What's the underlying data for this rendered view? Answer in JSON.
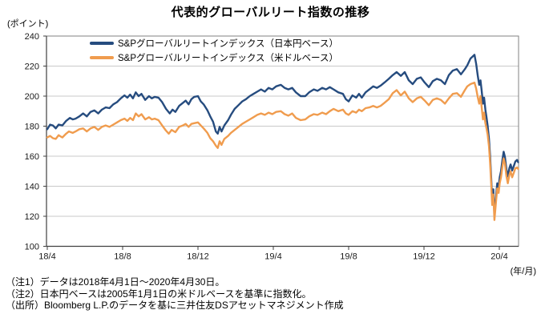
{
  "title": "代表的グローバルリート指数の推移",
  "notes": [
    "（注1）データは2018年4月1日～2020年4月30日。",
    "（注2）日本円ベースは2005年1月1日の米ドルベースを基準に指数化。",
    "（出所）Bloomberg L.P.のデータを基に三井住友DSアセットマネジメント作成"
  ],
  "colors": {
    "jpy_line": "#264C7F",
    "usd_line": "#F09C4E",
    "gridline": "#C9C9C9",
    "axis": "#404040",
    "border": "#808080"
  },
  "chart_data": {
    "type": "line",
    "title": "代表的グローバルリート指数の推移",
    "y_axis_unit": "(ポイント)",
    "x_axis_unit": "(年/月)",
    "xlabel": "年/月",
    "ylabel": "ポイント",
    "xlim": [
      0,
      25
    ],
    "ylim": [
      100,
      240
    ],
    "y_ticks": [
      100,
      120,
      140,
      160,
      180,
      200,
      220,
      240
    ],
    "x_tick_labels": [
      "18/4",
      "18/8",
      "18/12",
      "19/4",
      "19/8",
      "19/12",
      "20/4"
    ],
    "x_tick_positions": [
      0,
      4,
      8,
      12,
      16,
      20,
      24
    ],
    "x_unit_desc": "months since 2018/4",
    "grid": "horizontal",
    "legend_position": "top-left-inside",
    "series": [
      {
        "name": "S&Pグローバルリートインデックス（日本円ベース）",
        "color": "#264C7F",
        "points": [
          [
            0,
            178
          ],
          [
            0.15,
            181
          ],
          [
            0.3,
            180.5
          ],
          [
            0.45,
            178.5
          ],
          [
            0.6,
            181
          ],
          [
            0.8,
            180.5
          ],
          [
            1.0,
            183.5
          ],
          [
            1.2,
            185.5
          ],
          [
            1.35,
            184.5
          ],
          [
            1.5,
            185
          ],
          [
            1.7,
            186.5
          ],
          [
            1.9,
            188.5
          ],
          [
            2.1,
            186.5
          ],
          [
            2.3,
            189.5
          ],
          [
            2.5,
            190.5
          ],
          [
            2.7,
            188.5
          ],
          [
            2.9,
            191
          ],
          [
            3.1,
            192.5
          ],
          [
            3.3,
            192
          ],
          [
            3.5,
            194.5
          ],
          [
            3.7,
            196
          ],
          [
            3.9,
            198.5
          ],
          [
            4.1,
            200.5
          ],
          [
            4.25,
            199
          ],
          [
            4.4,
            201
          ],
          [
            4.55,
            198.5
          ],
          [
            4.7,
            202.5
          ],
          [
            4.85,
            200
          ],
          [
            5.0,
            201.5
          ],
          [
            5.2,
            197.5
          ],
          [
            5.4,
            200
          ],
          [
            5.55,
            198.5
          ],
          [
            5.7,
            199.5
          ],
          [
            5.9,
            199
          ],
          [
            6.1,
            196
          ],
          [
            6.3,
            191.5
          ],
          [
            6.5,
            188.5
          ],
          [
            6.65,
            191
          ],
          [
            6.8,
            189.5
          ],
          [
            7.0,
            193.5
          ],
          [
            7.2,
            195.5
          ],
          [
            7.35,
            197
          ],
          [
            7.5,
            194.5
          ],
          [
            7.65,
            198
          ],
          [
            7.8,
            199.5
          ],
          [
            8.0,
            200
          ],
          [
            8.15,
            196.5
          ],
          [
            8.3,
            194.5
          ],
          [
            8.5,
            190.5
          ],
          [
            8.65,
            186.5
          ],
          [
            8.8,
            183
          ],
          [
            8.95,
            176.5
          ],
          [
            9.05,
            175
          ],
          [
            9.15,
            179.5
          ],
          [
            9.25,
            176.5
          ],
          [
            9.4,
            180.5
          ],
          [
            9.6,
            184
          ],
          [
            9.75,
            187.5
          ],
          [
            9.95,
            191.5
          ],
          [
            10.15,
            194
          ],
          [
            10.35,
            196.5
          ],
          [
            10.55,
            198
          ],
          [
            10.75,
            200
          ],
          [
            10.95,
            201.5
          ],
          [
            11.15,
            203
          ],
          [
            11.35,
            204.5
          ],
          [
            11.55,
            203
          ],
          [
            11.75,
            205.5
          ],
          [
            11.95,
            204.5
          ],
          [
            12.15,
            206.5
          ],
          [
            12.4,
            207.5
          ],
          [
            12.6,
            205.5
          ],
          [
            12.8,
            204.5
          ],
          [
            13.0,
            205.5
          ],
          [
            13.2,
            202.5
          ],
          [
            13.45,
            200
          ],
          [
            13.7,
            200
          ],
          [
            13.9,
            202.5
          ],
          [
            14.15,
            204.5
          ],
          [
            14.35,
            203.5
          ],
          [
            14.6,
            205.5
          ],
          [
            14.8,
            204.5
          ],
          [
            15.0,
            206
          ],
          [
            15.2,
            204.5
          ],
          [
            15.45,
            202.5
          ],
          [
            15.7,
            201.5
          ],
          [
            15.85,
            198
          ],
          [
            16.0,
            196.5
          ],
          [
            16.2,
            200.5
          ],
          [
            16.4,
            199
          ],
          [
            16.55,
            201.5
          ],
          [
            16.7,
            199
          ],
          [
            16.9,
            202.5
          ],
          [
            17.1,
            204.5
          ],
          [
            17.3,
            206.5
          ],
          [
            17.5,
            205.5
          ],
          [
            17.7,
            207
          ],
          [
            17.9,
            209
          ],
          [
            18.13,
            211.5
          ],
          [
            18.34,
            214
          ],
          [
            18.55,
            216
          ],
          [
            18.77,
            213.5
          ],
          [
            18.98,
            216
          ],
          [
            19.19,
            210.5
          ],
          [
            19.4,
            208
          ],
          [
            19.62,
            211.5
          ],
          [
            19.83,
            212.5
          ],
          [
            20.04,
            209
          ],
          [
            20.26,
            206
          ],
          [
            20.47,
            210
          ],
          [
            20.68,
            211.5
          ],
          [
            20.9,
            210.5
          ],
          [
            21.11,
            208
          ],
          [
            21.32,
            214
          ],
          [
            21.53,
            217
          ],
          [
            21.75,
            218
          ],
          [
            21.96,
            214.5
          ],
          [
            22.17,
            218
          ],
          [
            22.3,
            220.5
          ],
          [
            22.47,
            225
          ],
          [
            22.68,
            227.5
          ],
          [
            22.77,
            221.5
          ],
          [
            22.85,
            214
          ],
          [
            22.93,
            207.5
          ],
          [
            23.0,
            210.5
          ],
          [
            23.06,
            204
          ],
          [
            23.13,
            195
          ],
          [
            23.19,
            199
          ],
          [
            23.26,
            191
          ],
          [
            23.32,
            186
          ],
          [
            23.38,
            180.5
          ],
          [
            23.45,
            171.5
          ],
          [
            23.51,
            160
          ],
          [
            23.57,
            145
          ],
          [
            23.62,
            131
          ],
          [
            23.68,
            138
          ],
          [
            23.74,
            121
          ],
          [
            23.83,
            134
          ],
          [
            23.89,
            142
          ],
          [
            23.96,
            139.5
          ],
          [
            24.02,
            146
          ],
          [
            24.09,
            150
          ],
          [
            24.17,
            158
          ],
          [
            24.23,
            163
          ],
          [
            24.3,
            159.5
          ],
          [
            24.38,
            151
          ],
          [
            24.45,
            146.5
          ],
          [
            24.53,
            152
          ],
          [
            24.6,
            154.5
          ],
          [
            24.68,
            150.5
          ],
          [
            24.77,
            153.5
          ],
          [
            24.85,
            156.5
          ],
          [
            24.94,
            157.5
          ],
          [
            25.0,
            156
          ]
        ]
      },
      {
        "name": "S&Pグローバルリートインデックス（米ドルベース）",
        "color": "#F09C4E",
        "points": [
          [
            0,
            172.5
          ],
          [
            0.15,
            173.5
          ],
          [
            0.3,
            172
          ],
          [
            0.45,
            171.5
          ],
          [
            0.6,
            174
          ],
          [
            0.8,
            172.5
          ],
          [
            1.0,
            175
          ],
          [
            1.15,
            176.5
          ],
          [
            1.35,
            175.5
          ],
          [
            1.5,
            176.5
          ],
          [
            1.7,
            178
          ],
          [
            1.9,
            178.5
          ],
          [
            2.1,
            176.5
          ],
          [
            2.3,
            178.5
          ],
          [
            2.5,
            179.5
          ],
          [
            2.7,
            177.5
          ],
          [
            2.9,
            179.5
          ],
          [
            3.1,
            180.5
          ],
          [
            3.3,
            179.5
          ],
          [
            3.5,
            181
          ],
          [
            3.7,
            182.5
          ],
          [
            3.9,
            184
          ],
          [
            4.1,
            185
          ],
          [
            4.25,
            183.5
          ],
          [
            4.4,
            185.5
          ],
          [
            4.55,
            184
          ],
          [
            4.7,
            188.5
          ],
          [
            4.85,
            186.5
          ],
          [
            5.0,
            188
          ],
          [
            5.2,
            184.5
          ],
          [
            5.4,
            186
          ],
          [
            5.55,
            184.5
          ],
          [
            5.7,
            185
          ],
          [
            5.9,
            184
          ],
          [
            6.1,
            180.5
          ],
          [
            6.3,
            177
          ],
          [
            6.45,
            175
          ],
          [
            6.6,
            177.5
          ],
          [
            6.8,
            176
          ],
          [
            7.0,
            179.5
          ],
          [
            7.2,
            180.5
          ],
          [
            7.35,
            181.5
          ],
          [
            7.5,
            179.5
          ],
          [
            7.65,
            181.5
          ],
          [
            7.8,
            182
          ],
          [
            8.0,
            182.5
          ],
          [
            8.15,
            180.5
          ],
          [
            8.3,
            178.5
          ],
          [
            8.5,
            175.5
          ],
          [
            8.65,
            172
          ],
          [
            8.8,
            170
          ],
          [
            8.95,
            167
          ],
          [
            9.05,
            165.5
          ],
          [
            9.15,
            170
          ],
          [
            9.25,
            167.5
          ],
          [
            9.4,
            171.5
          ],
          [
            9.6,
            173.5
          ],
          [
            9.75,
            175.5
          ],
          [
            9.95,
            177.5
          ],
          [
            10.15,
            179.5
          ],
          [
            10.35,
            181.5
          ],
          [
            10.55,
            183
          ],
          [
            10.75,
            184.5
          ],
          [
            10.95,
            186
          ],
          [
            11.15,
            187.5
          ],
          [
            11.35,
            188.5
          ],
          [
            11.55,
            187.5
          ],
          [
            11.75,
            189
          ],
          [
            11.95,
            188
          ],
          [
            12.15,
            189.5
          ],
          [
            12.4,
            190
          ],
          [
            12.6,
            188
          ],
          [
            12.8,
            187
          ],
          [
            13.0,
            188.5
          ],
          [
            13.2,
            185.5
          ],
          [
            13.45,
            184
          ],
          [
            13.7,
            184.5
          ],
          [
            13.9,
            186.5
          ],
          [
            14.15,
            188
          ],
          [
            14.35,
            187.5
          ],
          [
            14.6,
            189
          ],
          [
            14.8,
            188
          ],
          [
            15.0,
            190
          ],
          [
            15.2,
            191.5
          ],
          [
            15.45,
            190
          ],
          [
            15.7,
            191
          ],
          [
            15.85,
            188.5
          ],
          [
            16.0,
            187.5
          ],
          [
            16.2,
            190
          ],
          [
            16.4,
            189
          ],
          [
            16.55,
            191
          ],
          [
            16.7,
            190
          ],
          [
            16.9,
            192
          ],
          [
            17.1,
            192.5
          ],
          [
            17.3,
            193.5
          ],
          [
            17.5,
            192.5
          ],
          [
            17.7,
            193.5
          ],
          [
            17.9,
            195.5
          ],
          [
            18.13,
            198
          ],
          [
            18.34,
            202
          ],
          [
            18.55,
            204
          ],
          [
            18.77,
            200.5
          ],
          [
            18.98,
            203
          ],
          [
            19.19,
            198.5
          ],
          [
            19.4,
            196
          ],
          [
            19.62,
            198.5
          ],
          [
            19.83,
            199.5
          ],
          [
            20.04,
            197
          ],
          [
            20.26,
            194
          ],
          [
            20.47,
            197.5
          ],
          [
            20.68,
            198.5
          ],
          [
            20.9,
            197.5
          ],
          [
            21.11,
            195
          ],
          [
            21.32,
            198.5
          ],
          [
            21.53,
            201.5
          ],
          [
            21.75,
            202
          ],
          [
            21.96,
            199.5
          ],
          [
            22.17,
            204
          ],
          [
            22.3,
            206.5
          ],
          [
            22.47,
            208
          ],
          [
            22.68,
            209
          ],
          [
            22.77,
            205
          ],
          [
            22.85,
            199.5
          ],
          [
            22.93,
            195
          ],
          [
            23.0,
            200
          ],
          [
            23.06,
            193
          ],
          [
            23.13,
            184.5
          ],
          [
            23.19,
            189
          ],
          [
            23.26,
            182
          ],
          [
            23.32,
            178.5
          ],
          [
            23.38,
            174.5
          ],
          [
            23.45,
            166.5
          ],
          [
            23.51,
            155.5
          ],
          [
            23.57,
            141
          ],
          [
            23.62,
            127.5
          ],
          [
            23.68,
            134.5
          ],
          [
            23.74,
            117.5
          ],
          [
            23.83,
            130.5
          ],
          [
            23.89,
            138.5
          ],
          [
            23.96,
            135.5
          ],
          [
            24.02,
            142
          ],
          [
            24.09,
            146
          ],
          [
            24.17,
            153.5
          ],
          [
            24.23,
            158.5
          ],
          [
            24.3,
            155
          ],
          [
            24.38,
            146.5
          ],
          [
            24.45,
            142
          ],
          [
            24.53,
            147.5
          ],
          [
            24.6,
            150
          ],
          [
            24.68,
            146
          ],
          [
            24.77,
            149
          ],
          [
            24.85,
            152
          ],
          [
            24.94,
            152.5
          ],
          [
            25.0,
            151.5
          ]
        ]
      }
    ]
  }
}
